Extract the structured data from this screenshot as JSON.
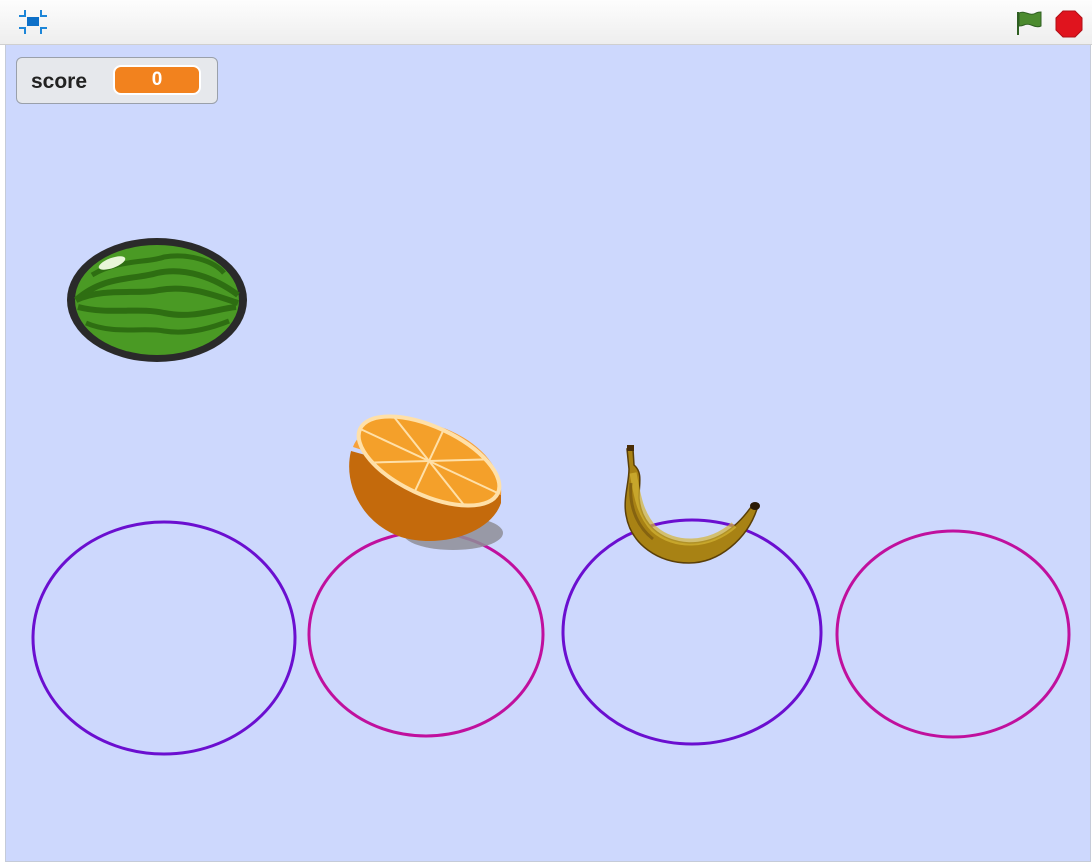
{
  "toolbar": {
    "fullscreen_icon": "small-stage-icon",
    "green_flag_icon": "green-flag-icon",
    "stop_icon": "stop-icon"
  },
  "stage": {
    "background_color": "#cdd8fd"
  },
  "monitor": {
    "label": "score",
    "value": "0",
    "value_color": "#f2821e"
  },
  "sprites": {
    "fruits": [
      "watermelon",
      "orange",
      "banana"
    ],
    "targets": [
      {
        "name": "ring-1",
        "color": "#6b0fd0"
      },
      {
        "name": "ring-2",
        "color": "#c0109e"
      },
      {
        "name": "ring-3",
        "color": "#6b0fd0"
      },
      {
        "name": "ring-4",
        "color": "#c0109e"
      }
    ]
  }
}
